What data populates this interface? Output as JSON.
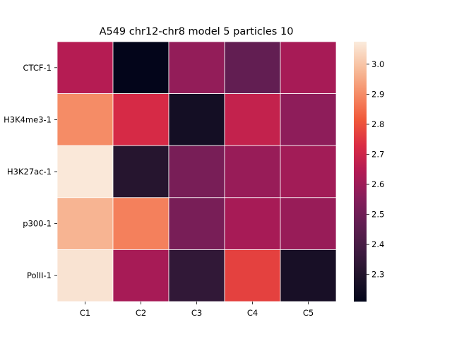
{
  "chart_data": {
    "type": "heatmap",
    "title": "A549 chr12-chr8 model 5 particles 10",
    "xlabel": "",
    "ylabel": "",
    "columns": [
      "C1",
      "C2",
      "C3",
      "C4",
      "C5"
    ],
    "rows": [
      "CTCF-1",
      "H3K4me3-1",
      "H3K27ac-1",
      "p300-1",
      "PolII-1"
    ],
    "values": [
      [
        2.65,
        2.21,
        2.58,
        2.47,
        2.62
      ],
      [
        2.9,
        2.72,
        2.26,
        2.68,
        2.57
      ],
      [
        3.07,
        2.31,
        2.52,
        2.59,
        2.61
      ],
      [
        2.97,
        2.88,
        2.52,
        2.62,
        2.59
      ],
      [
        3.06,
        2.62,
        2.34,
        2.77,
        2.27
      ]
    ],
    "vmin": 2.21,
    "vmax": 3.075,
    "colormap": "rocket",
    "colorbar": {
      "ticks": [
        2.3,
        2.4,
        2.5,
        2.6,
        2.7,
        2.8,
        2.9,
        3.0
      ],
      "tick_labels": [
        "2.3",
        "2.4",
        "2.5",
        "2.6",
        "2.7",
        "2.8",
        "2.9",
        "3.0"
      ]
    },
    "grid": false,
    "cell_border_color": "#ffffff"
  }
}
